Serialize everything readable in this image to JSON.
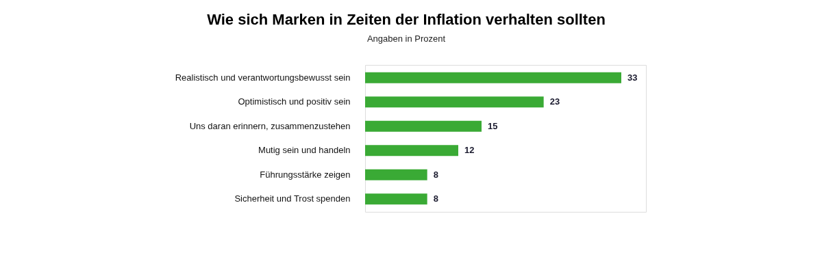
{
  "chart_data": {
    "type": "bar",
    "orientation": "horizontal",
    "data_labels": true,
    "title": "Wie sich Marken in Zeiten der Inflation verhalten sollten",
    "subtitle": "Angaben in Prozent",
    "categories": [
      "Realistisch und verantwortungsbewusst sein",
      "Optimistisch und positiv sein",
      "Uns daran erinnern, zusammenzustehen",
      "Mutig sein und handeln",
      "Führungsstärke zeigen",
      "Sicherheit und Trost spenden"
    ],
    "values": [
      33,
      23,
      15,
      12,
      8,
      8
    ],
    "color": "#3aaa35"
  }
}
